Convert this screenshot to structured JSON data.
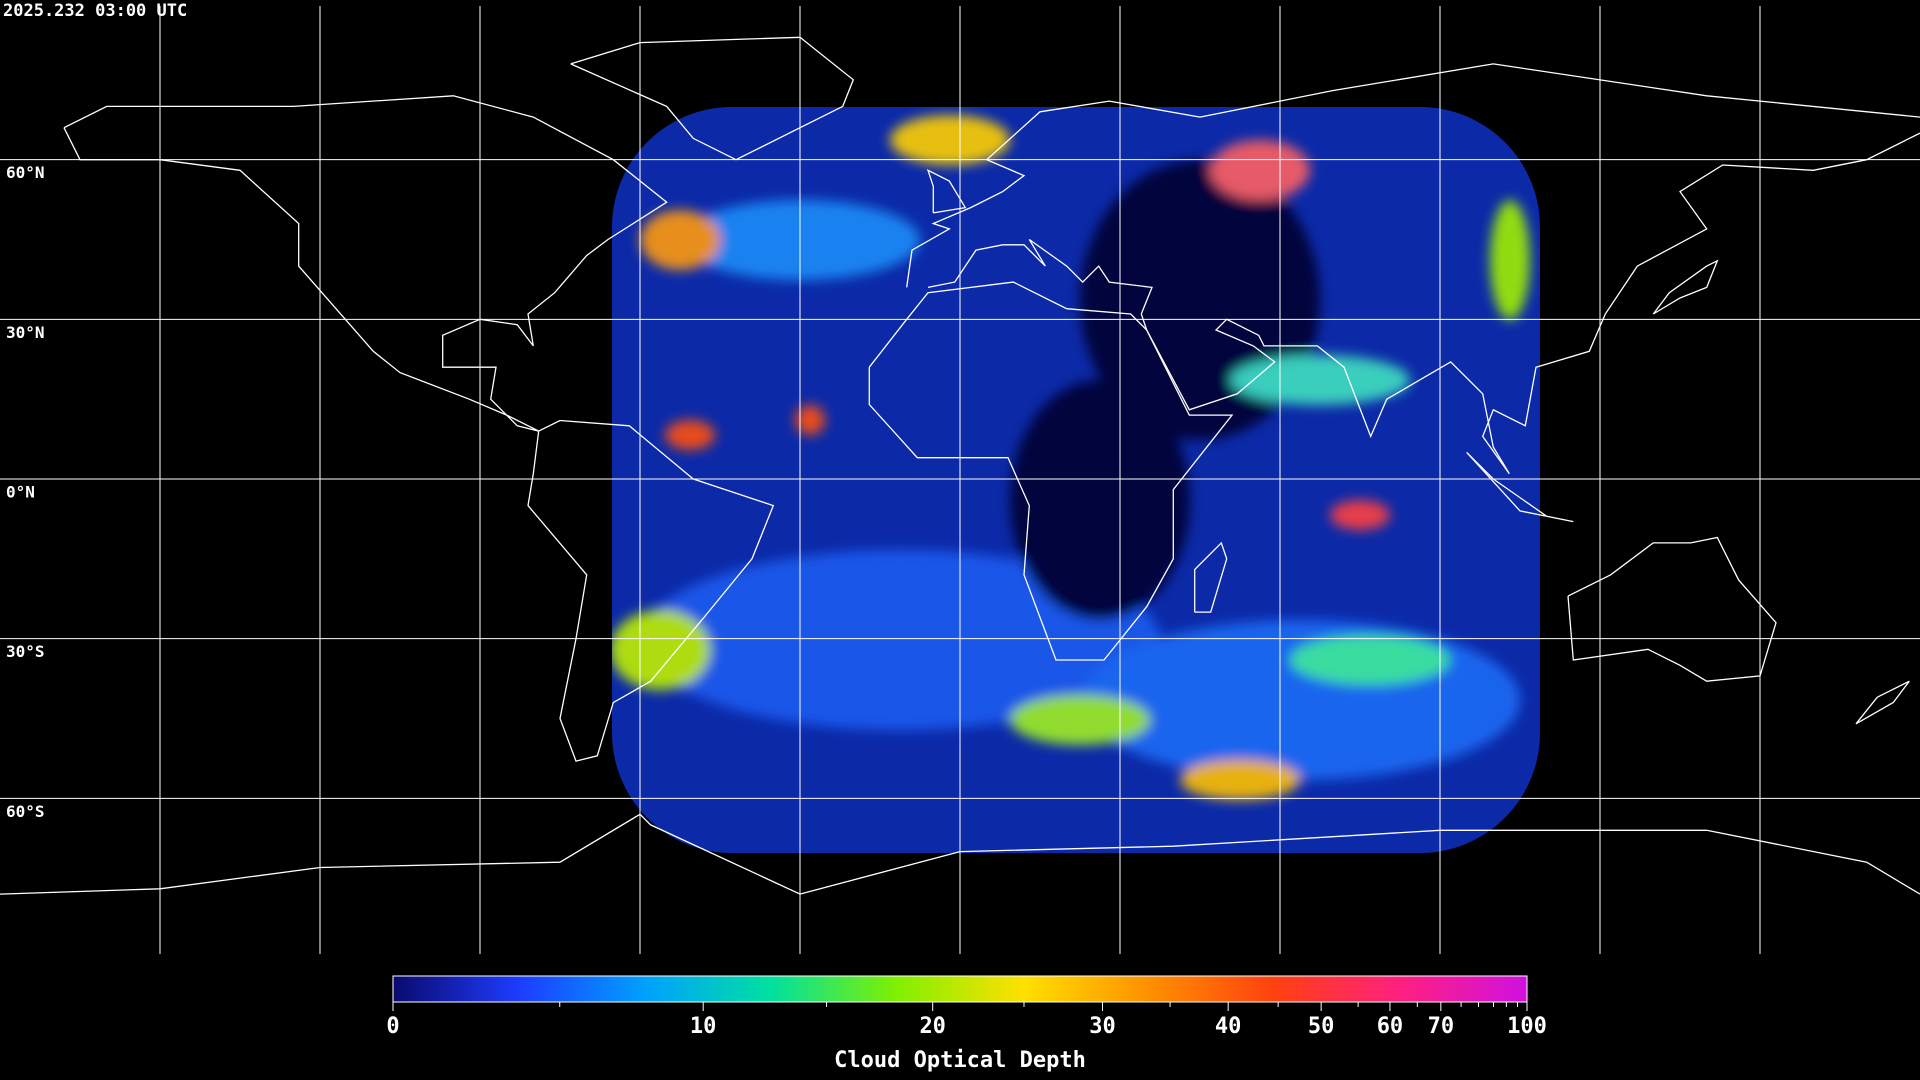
{
  "chart_data": {
    "type": "map",
    "title": "2025.232 03:00 UTC",
    "xlim": [
      -180,
      180
    ],
    "ylim": [
      -90,
      90
    ],
    "xticks": [
      -150,
      -120,
      -90,
      -60,
      -30,
      0,
      30,
      60,
      90,
      120,
      150
    ],
    "yticks": [
      {
        "value": 60,
        "label": "60°N"
      },
      {
        "value": 30,
        "label": "30°N"
      },
      {
        "value": 0,
        "label": "0°N"
      },
      {
        "value": -30,
        "label": "30°S"
      },
      {
        "value": -60,
        "label": "60°S"
      }
    ],
    "grid": true,
    "colorbar": {
      "label": "Cloud Optical Depth",
      "lim": [
        0,
        100
      ],
      "ticks": [
        0,
        10,
        20,
        30,
        40,
        50,
        60,
        70,
        100
      ],
      "minor_ticks": [
        5,
        15,
        25,
        35,
        45,
        55,
        65,
        75,
        80,
        85,
        90,
        95
      ],
      "colors": [
        "#0a0a6e",
        "#1e3cff",
        "#00a0ff",
        "#00e0a0",
        "#80f000",
        "#ffe000",
        "#ff9000",
        "#ff4010",
        "#ff2080",
        "#d010e0"
      ]
    }
  }
}
